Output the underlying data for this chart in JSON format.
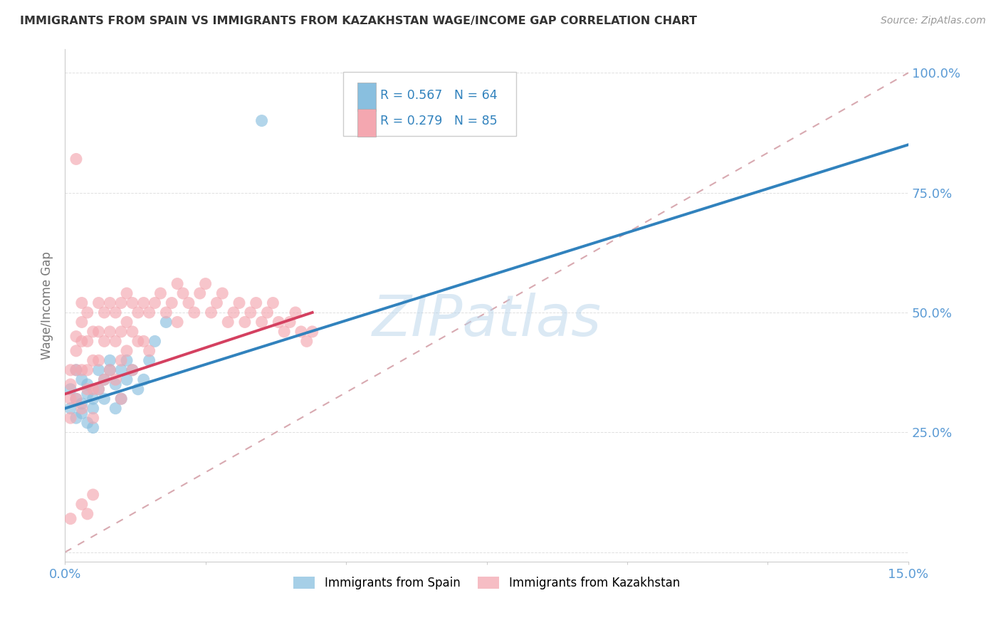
{
  "title": "IMMIGRANTS FROM SPAIN VS IMMIGRANTS FROM KAZAKHSTAN WAGE/INCOME GAP CORRELATION CHART",
  "source": "Source: ZipAtlas.com",
  "ylabel": "Wage/Income Gap",
  "xmin": 0.0,
  "xmax": 0.15,
  "ymin": 0.0,
  "ymax": 1.05,
  "color_spain": "#89bfdf",
  "color_kazakhstan": "#f4a7b0",
  "color_line_spain": "#3182bd",
  "color_line_kazakhstan": "#d44060",
  "color_diag": "#d4a0a8",
  "watermark_color": "#b8d4eb",
  "grid_color": "#e0e0e0",
  "spine_color": "#cccccc",
  "ytick_color": "#5b9bd5",
  "xtick_color": "#5b9bd5",
  "title_color": "#333333",
  "source_color": "#999999",
  "ylabel_color": "#777777",
  "legend_text_color": "#3182bd",
  "legend_N_color": "#3182bd"
}
